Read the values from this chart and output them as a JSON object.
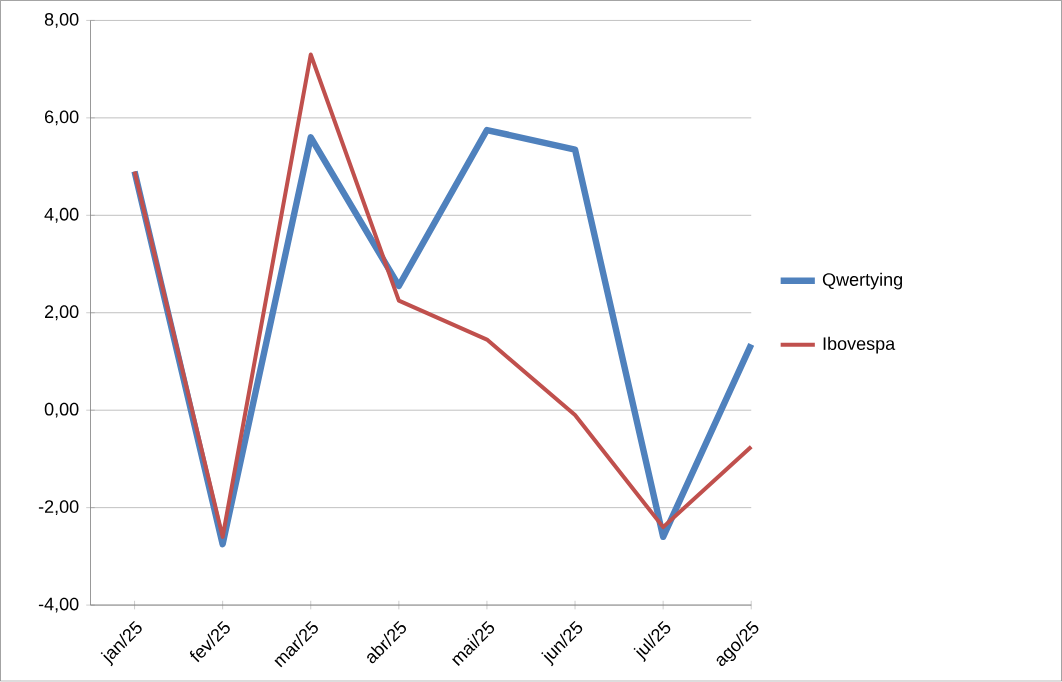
{
  "chart_data": {
    "type": "line",
    "categories": [
      "jan/25",
      "fev/25",
      "mar/25",
      "abr/25",
      "mai/25",
      "jun/25",
      "jul/25",
      "ago/25"
    ],
    "series": [
      {
        "name": "Qwertying",
        "color": "#4f81bd",
        "values": [
          4.9,
          -2.75,
          5.6,
          2.55,
          5.75,
          5.35,
          -2.6,
          1.35
        ]
      },
      {
        "name": "Ibovespa",
        "color": "#c0504d",
        "values": [
          4.9,
          -2.6,
          7.3,
          2.25,
          1.45,
          -0.1,
          -2.4,
          -0.75
        ]
      }
    ],
    "ylim": [
      -4,
      8
    ],
    "yticks": [
      {
        "value": -4,
        "label": "-4,00"
      },
      {
        "value": -2,
        "label": "-2,00"
      },
      {
        "value": 0,
        "label": "0,00"
      },
      {
        "value": 2,
        "label": "2,00"
      },
      {
        "value": 4,
        "label": "4,00"
      },
      {
        "value": 6,
        "label": "6,00"
      },
      {
        "value": 8,
        "label": "8,00"
      }
    ],
    "grid": "y",
    "legend": "right",
    "marker": "none",
    "line_style": "solid"
  }
}
